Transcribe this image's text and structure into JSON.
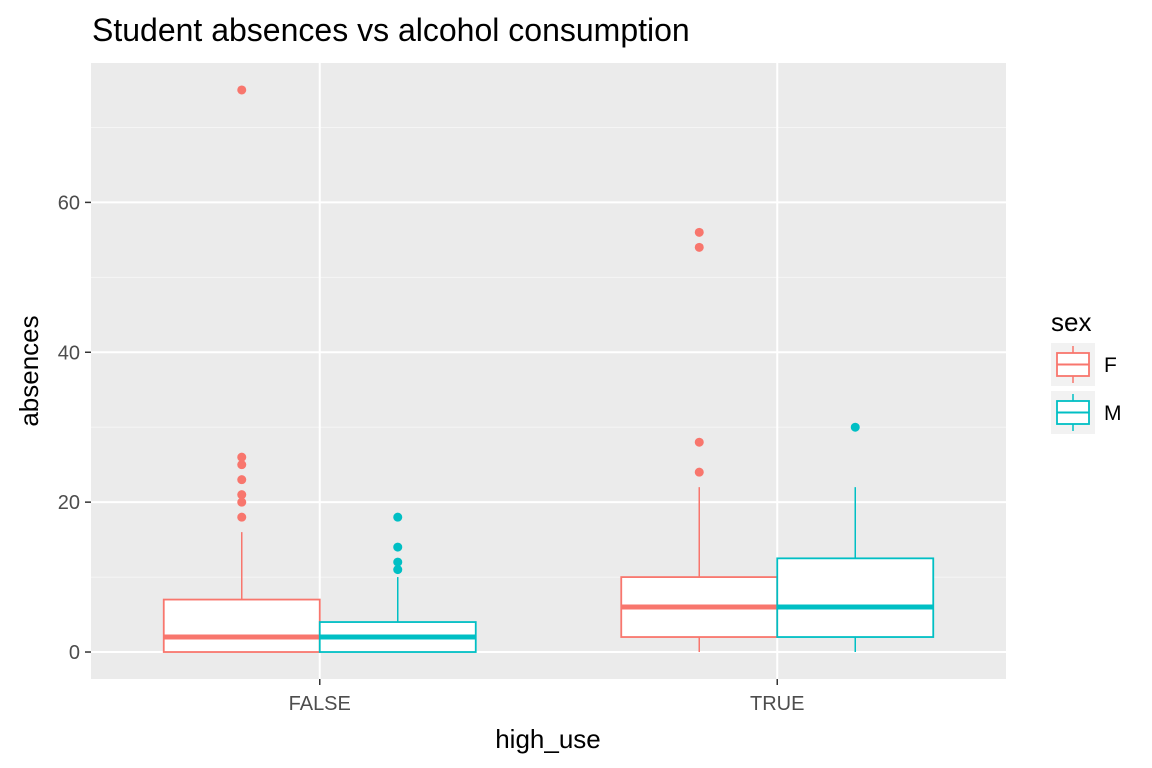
{
  "chart_data": {
    "type": "boxplot",
    "title": "Student absences vs alcohol consumption",
    "xlabel": "high_use",
    "ylabel": "absences",
    "categories": [
      "FALSE",
      "TRUE"
    ],
    "ylim": [
      -3.6,
      78.6
    ],
    "y_ticks": [
      0,
      20,
      40,
      60
    ],
    "y_tick_labels": [
      "0",
      "20",
      "40",
      "60"
    ],
    "grid": true,
    "legend": {
      "title": "sex",
      "position": "right",
      "entries": [
        {
          "label": "F",
          "color": "#F8766D"
        },
        {
          "label": "M",
          "color": "#00BFC4"
        }
      ]
    },
    "series": [
      {
        "name": "F",
        "color": "#F8766D",
        "boxes": [
          {
            "category": "FALSE",
            "min": 0,
            "q1": 0,
            "median": 2,
            "q3": 7,
            "max": 16,
            "outliers": [
              18,
              20,
              21,
              23,
              25,
              26,
              75
            ]
          },
          {
            "category": "TRUE",
            "min": 0,
            "q1": 2,
            "median": 6,
            "q3": 10,
            "max": 22,
            "outliers": [
              24,
              28,
              54,
              56
            ]
          }
        ]
      },
      {
        "name": "M",
        "color": "#00BFC4",
        "boxes": [
          {
            "category": "FALSE",
            "min": 0,
            "q1": 0,
            "median": 2,
            "q3": 4,
            "max": 10,
            "outliers": [
              11,
              12,
              14,
              18
            ]
          },
          {
            "category": "TRUE",
            "min": 0,
            "q1": 2,
            "median": 6,
            "q3": 12.5,
            "max": 22,
            "outliers": [
              30
            ]
          }
        ]
      }
    ]
  },
  "colors": {
    "panel_background": "#EBEBEB",
    "grid_major": "#FFFFFF",
    "grid_minor": "#F5F5F5",
    "tick_text": "#4D4D4D"
  }
}
